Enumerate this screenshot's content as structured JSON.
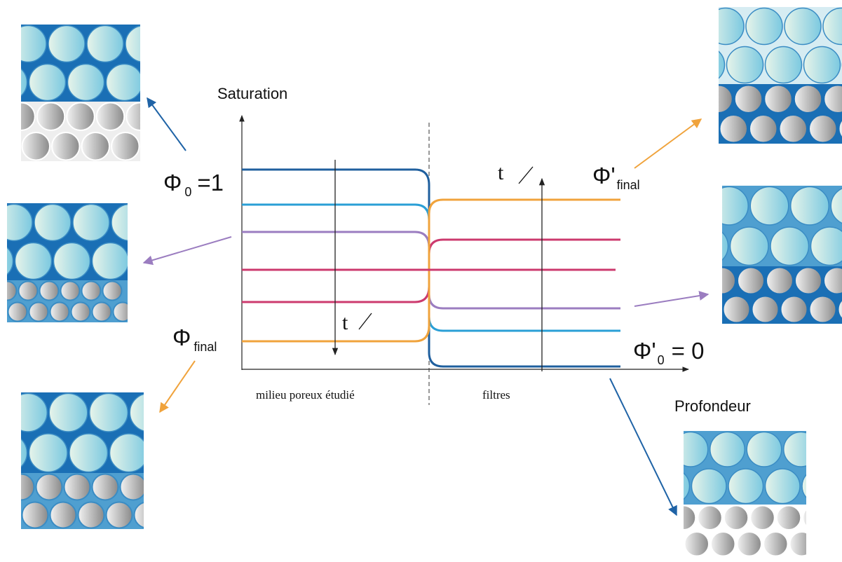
{
  "axis": {
    "y_label": "Saturation",
    "x_label": "Profondeur"
  },
  "phi_start": {
    "symbol": "Φ",
    "subscript": "0",
    "rest": "=1"
  },
  "phi_final": {
    "symbol": "Φ",
    "subscript": "final"
  },
  "phi_prime_final": {
    "symbol": "Φ'",
    "subscript": "final"
  },
  "phi_prime_start": {
    "symbol": "Φ'",
    "subscript": "0",
    "rest": "= 0"
  },
  "time_left": "t",
  "time_right": "t",
  "regions": {
    "left": "milieu poreux étudié",
    "right": "filtres"
  }
}
